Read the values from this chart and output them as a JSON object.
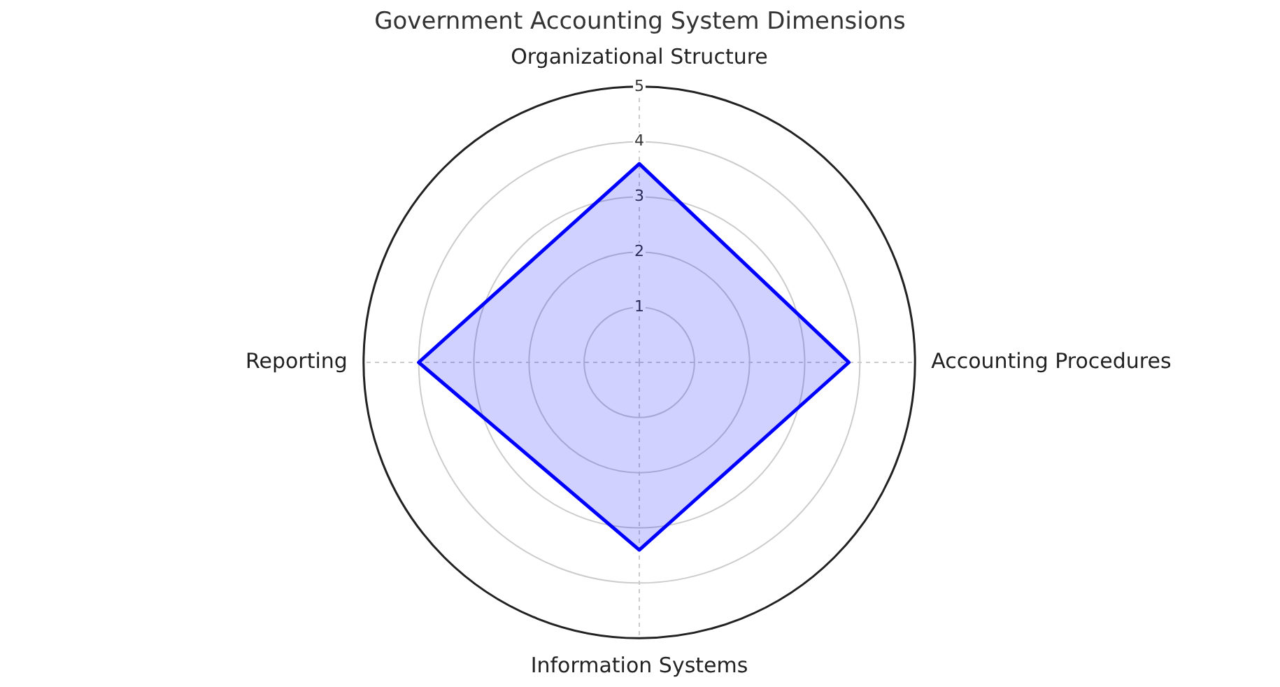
{
  "chart_data": {
    "type": "radar",
    "title": "Government Accounting System Dimensions",
    "categories": [
      "Organizational Structure",
      "Accounting Procedures",
      "Information Systems",
      "Reporting"
    ],
    "series": [
      {
        "color": "#0000ff",
        "values": [
          3.6,
          3.8,
          3.4,
          4.0
        ]
      }
    ],
    "ylim": [
      0,
      5
    ],
    "yticks": [
      1,
      2,
      3,
      4,
      5
    ],
    "grid": true
  }
}
